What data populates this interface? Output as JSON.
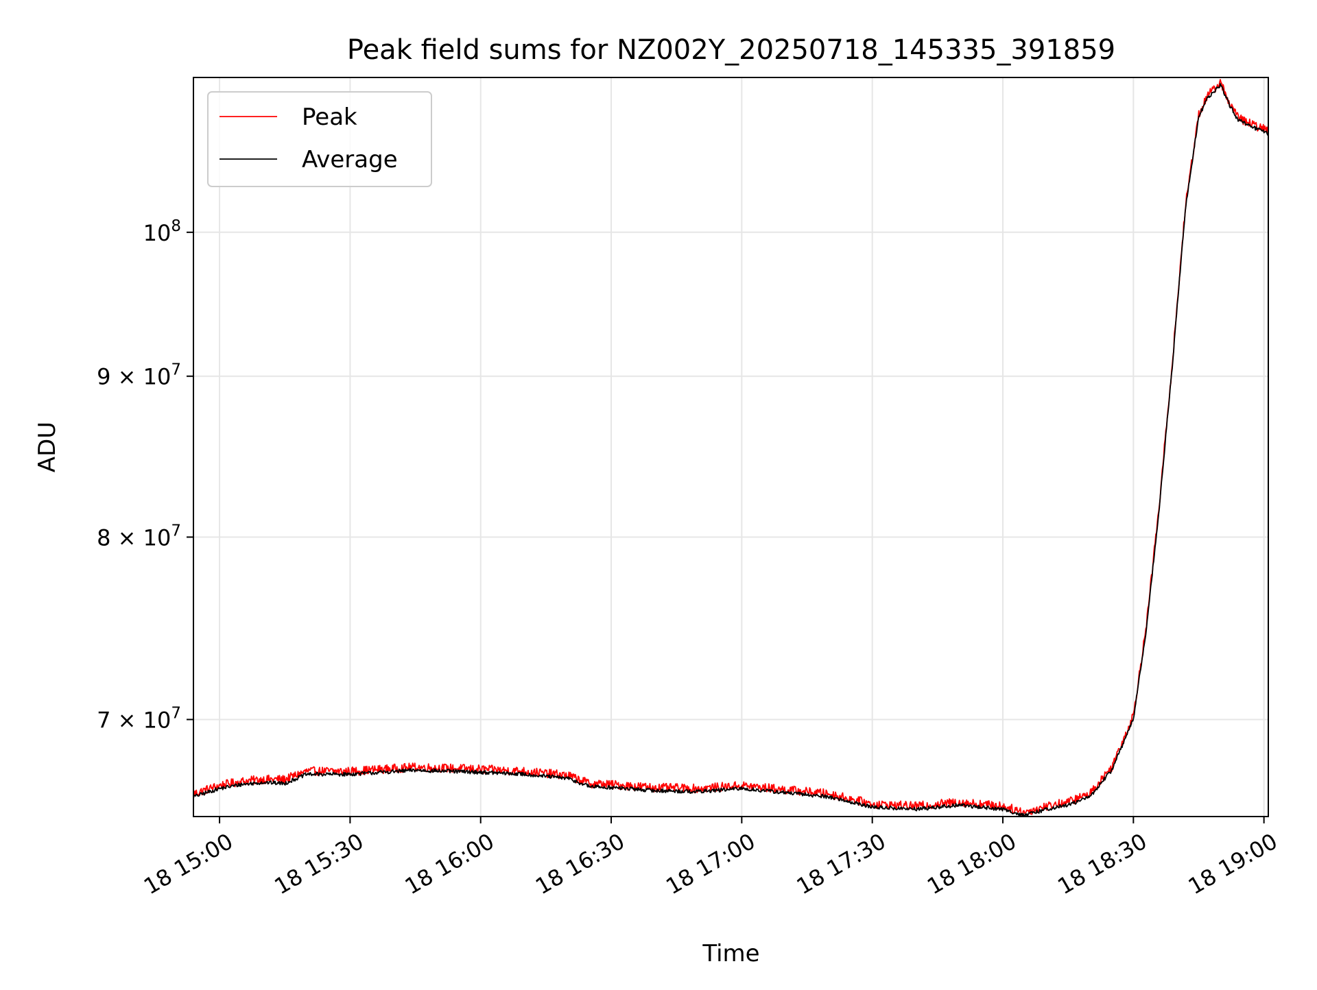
{
  "chart_data": {
    "type": "line",
    "title": "Peak field sums for NZ002Y_20250718_145335_391859",
    "xlabel": "Time",
    "ylabel": "ADU",
    "x_axis": {
      "range": [
        "14:54",
        "19:01"
      ],
      "ticks": [
        "15:00",
        "15:30",
        "16:00",
        "16:30",
        "17:00",
        "17:30",
        "18:00",
        "18:30",
        "19:00"
      ],
      "tick_labels": [
        "18 15:00",
        "18 15:30",
        "18 16:00",
        "18 16:30",
        "18 17:00",
        "18 17:30",
        "18 18:00",
        "18 18:30",
        "18 19:00"
      ]
    },
    "y_axis": {
      "scale": "log",
      "range": [
        65200000,
        112000000
      ],
      "ticks": [
        70000000,
        80000000,
        90000000,
        100000000
      ],
      "tick_labels": [
        {
          "mantissa": "7",
          "times": "×",
          "base": "10",
          "exponent": "7"
        },
        {
          "mantissa": "8",
          "times": "×",
          "base": "10",
          "exponent": "7"
        },
        {
          "mantissa": "9",
          "times": "×",
          "base": "10",
          "exponent": "7"
        },
        {
          "mantissa": "",
          "times": "",
          "base": "10",
          "exponent": "8"
        }
      ]
    },
    "grid": true,
    "legend_position": "top-left",
    "series": [
      {
        "name": "Peak",
        "color": "#ff0000",
        "x": [
          "14:54",
          "15:00",
          "15:05",
          "15:10",
          "15:15",
          "15:20",
          "15:30",
          "15:45",
          "16:00",
          "16:10",
          "16:20",
          "16:25",
          "16:30",
          "16:40",
          "16:50",
          "17:00",
          "17:10",
          "17:20",
          "17:30",
          "17:40",
          "17:50",
          "18:00",
          "18:05",
          "18:10",
          "18:15",
          "18:20",
          "18:25",
          "18:30",
          "18:33",
          "18:36",
          "18:39",
          "18:42",
          "18:45",
          "18:47",
          "18:50",
          "18:52",
          "18:54",
          "18:56",
          "19:01"
        ],
        "y": [
          66300000,
          66700000,
          66900000,
          67000000,
          67000000,
          67400000,
          67400000,
          67600000,
          67500000,
          67400000,
          67200000,
          66800000,
          66750000,
          66600000,
          66550000,
          66700000,
          66500000,
          66300000,
          65800000,
          65700000,
          65900000,
          65700000,
          65400000,
          65700000,
          65900000,
          66300000,
          67600000,
          70200000,
          75000000,
          82000000,
          91000000,
          102000000,
          109000000,
          110500000,
          111600000,
          110000000,
          108800000,
          108400000,
          107700000
        ]
      },
      {
        "name": "Average",
        "color": "#000000",
        "x": [
          "14:54",
          "15:00",
          "15:05",
          "15:10",
          "15:15",
          "15:20",
          "15:30",
          "15:45",
          "16:00",
          "16:10",
          "16:20",
          "16:25",
          "16:30",
          "16:40",
          "16:50",
          "17:00",
          "17:10",
          "17:20",
          "17:30",
          "17:40",
          "17:50",
          "18:00",
          "18:05",
          "18:10",
          "18:15",
          "18:20",
          "18:25",
          "18:30",
          "18:33",
          "18:36",
          "18:39",
          "18:42",
          "18:45",
          "18:47",
          "18:50",
          "18:52",
          "18:54",
          "18:56",
          "19:01"
        ],
        "y": [
          66150000,
          66550000,
          66750000,
          66850000,
          66800000,
          67250000,
          67250000,
          67450000,
          67350000,
          67250000,
          67050000,
          66650000,
          66600000,
          66450000,
          66400000,
          66550000,
          66350000,
          66150000,
          65650000,
          65550000,
          65750000,
          65550000,
          65250000,
          65550000,
          65750000,
          66150000,
          67450000,
          70000000,
          74800000,
          81800000,
          90800000,
          101800000,
          108800000,
          110300000,
          111400000,
          109800000,
          108600000,
          108200000,
          107500000
        ]
      }
    ]
  }
}
